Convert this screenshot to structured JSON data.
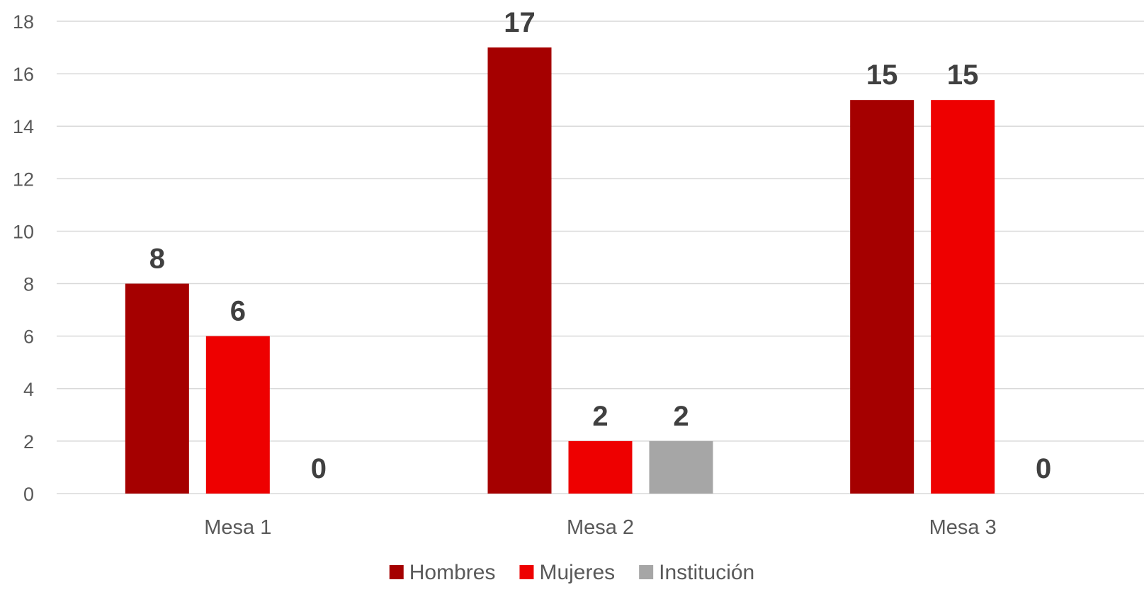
{
  "chart_data": {
    "type": "bar",
    "title": "",
    "xlabel": "",
    "ylabel": "",
    "categories": [
      "Mesa 1",
      "Mesa 2",
      "Mesa 3"
    ],
    "series": [
      {
        "name": "Hombres",
        "values": [
          8,
          17,
          15
        ],
        "color": "#A50000"
      },
      {
        "name": "Mujeres",
        "values": [
          6,
          2,
          15
        ],
        "color": "#EE0000"
      },
      {
        "name": "Institución",
        "values": [
          0,
          2,
          0
        ],
        "color": "#A6A6A6"
      }
    ],
    "ylim": [
      0,
      18
    ],
    "yticks": [
      0,
      2,
      4,
      6,
      8,
      10,
      12,
      14,
      16,
      18
    ],
    "grid": true,
    "gridColor": "#D9D9D9",
    "data_labels": true,
    "legend_position": "bottom"
  }
}
